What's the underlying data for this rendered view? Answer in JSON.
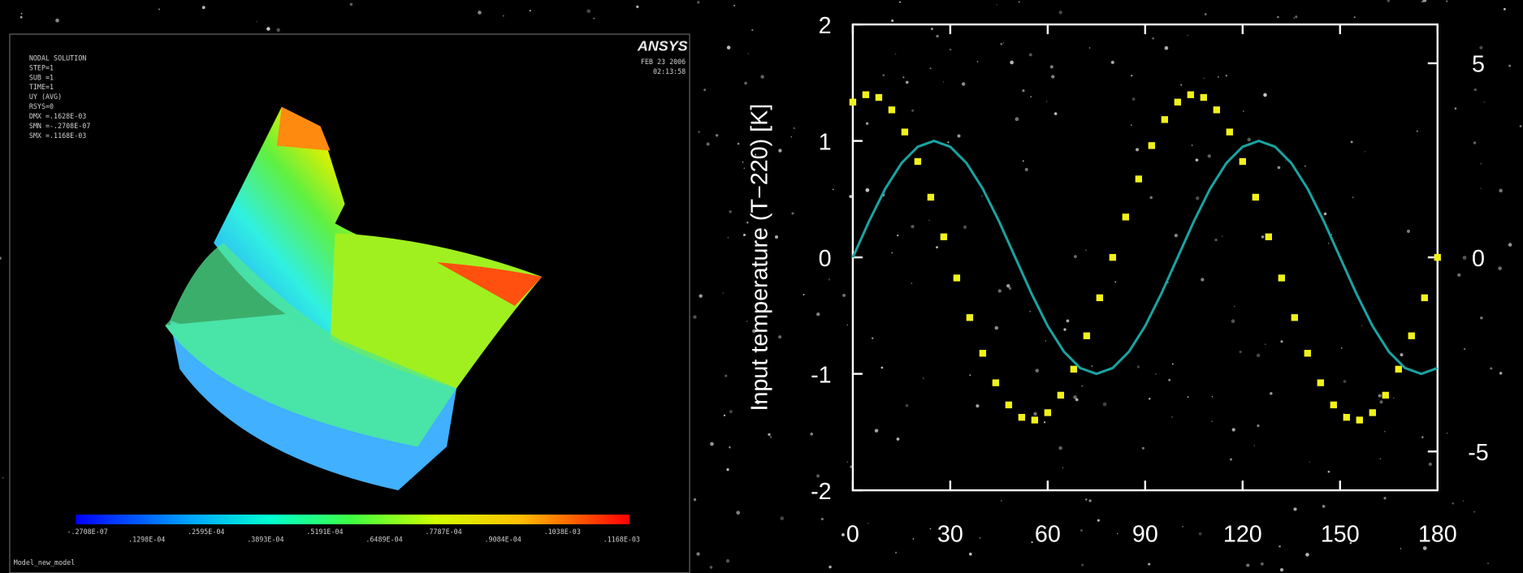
{
  "chart_data": {
    "type": "line",
    "ylabel": "Input temperature (T−220) [K]",
    "xlim": [
      0,
      180
    ],
    "xticks": [
      0,
      30,
      60,
      90,
      120,
      150,
      180
    ],
    "ylim": [
      -2,
      2
    ],
    "yticks": [
      -2,
      -1,
      0,
      1,
      2
    ],
    "y2lim": [
      -6,
      6
    ],
    "y2ticks": [
      -5,
      0,
      5
    ],
    "series": [
      {
        "type": "scatter",
        "color": "#f2f21a",
        "axis": "y2",
        "x": [
          0,
          4,
          8,
          12,
          16,
          20,
          24,
          28,
          32,
          36,
          40,
          44,
          48,
          52,
          56,
          60,
          64,
          68,
          72,
          76,
          80,
          84,
          88,
          92,
          96,
          100,
          104,
          108,
          112,
          116,
          120,
          124,
          128,
          132,
          136,
          140,
          144,
          148,
          152,
          156,
          160,
          164,
          168,
          172,
          176,
          180
        ],
        "values": [
          4.0,
          4.19,
          4.12,
          3.8,
          3.23,
          2.47,
          1.55,
          0.53,
          -0.53,
          -1.55,
          -2.47,
          -3.23,
          -3.8,
          -4.12,
          -4.19,
          -4.0,
          -3.55,
          -2.88,
          -2.02,
          -1.04,
          0,
          1.04,
          2.02,
          2.88,
          3.55,
          4.0,
          4.19,
          4.12,
          3.8,
          3.23,
          2.47,
          1.55,
          0.53,
          -0.53,
          -1.55,
          -2.47,
          -3.23,
          -3.8,
          -4.12,
          -4.19,
          -4.0,
          -3.55,
          -2.88,
          -2.02,
          -1.04,
          0
        ]
      },
      {
        "type": "line",
        "color": "#1aa3a3",
        "x": [
          0,
          5,
          10,
          15,
          20,
          25,
          30,
          35,
          40,
          45,
          50,
          55,
          60,
          65,
          70,
          75,
          80,
          85,
          90,
          95,
          100,
          105,
          110,
          115,
          120,
          125,
          130,
          135,
          140,
          145,
          150,
          155,
          160,
          165,
          170,
          175,
          180
        ],
        "values": [
          0,
          0.31,
          0.59,
          0.81,
          0.95,
          1,
          0.95,
          0.81,
          0.59,
          0.31,
          0,
          -0.31,
          -0.59,
          -0.81,
          -0.95,
          -1,
          -0.95,
          -0.81,
          -0.59,
          -0.31,
          0,
          0.31,
          0.59,
          0.81,
          0.95,
          1,
          0.95,
          0.81,
          0.59,
          0.31,
          0,
          -0.31,
          -0.59,
          -0.81,
          -0.95,
          -1,
          -0.95
        ]
      }
    ]
  },
  "ansys_panel": {
    "logo": "ANSYS",
    "header_lines": [
      "NODAL SOLUTION",
      "STEP=1",
      "SUB =1",
      "TIME=1",
      "UY      (AVG)",
      "RSYS=0",
      "DMX =.1628E-03",
      "SMN =-.2708E-07",
      "SMX =.1168E-03"
    ],
    "date": "FEB 23 2006",
    "time": "02:13:58",
    "colorbar_labels": [
      "-.2708E-07",
      ".1298E-04",
      ".2595E-04",
      ".3893E-04",
      ".5191E-04",
      ".6489E-04",
      ".7787E-04",
      ".9084E-04",
      ".1038E-03",
      ".1168E-03"
    ],
    "footer": "Model_new_model"
  }
}
